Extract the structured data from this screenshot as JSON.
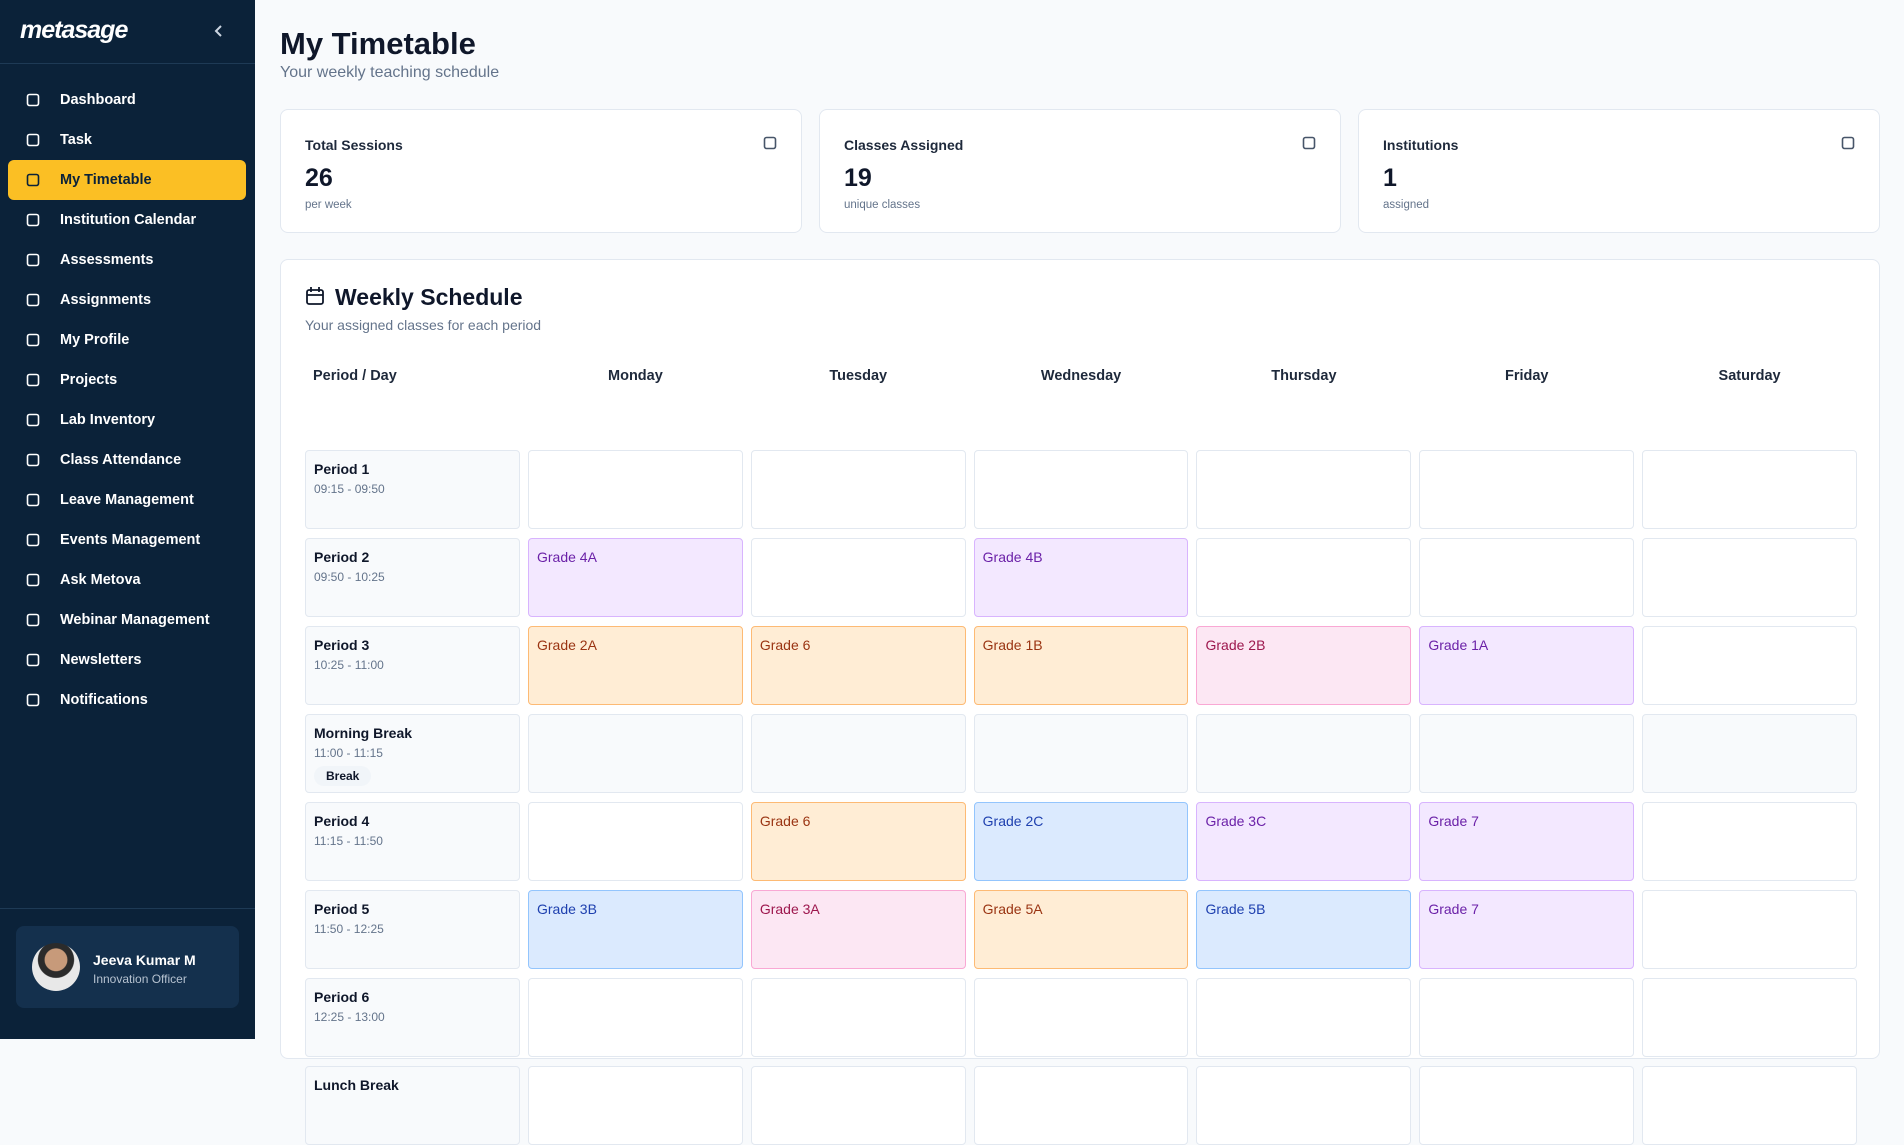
{
  "sidebar": {
    "brand": "metasage",
    "nav": [
      "Dashboard",
      "Task",
      "My Timetable",
      "Institution Calendar",
      "Assessments",
      "Assignments",
      "My Profile",
      "Projects",
      "Lab Inventory",
      "Class Attendance",
      "Leave Management",
      "Events Management",
      "Ask Metova",
      "Webinar Management",
      "Newsletters",
      "Notifications"
    ],
    "active": 2,
    "user": {
      "name": "Jeeva Kumar M",
      "role": "Innovation Officer"
    }
  },
  "header": {
    "title": "My Timetable",
    "subtitle": "Your weekly teaching schedule"
  },
  "stats": [
    {
      "label": "Total Sessions",
      "value": "26",
      "sub": "per week"
    },
    {
      "label": "Classes Assigned",
      "value": "19",
      "sub": "unique classes"
    },
    {
      "label": "Institutions",
      "value": "1",
      "sub": "assigned"
    }
  ],
  "schedule": {
    "title": "Weekly Schedule",
    "subtitle": "Your assigned classes for each period",
    "columns": [
      "Period / Day",
      "Monday",
      "Tuesday",
      "Wednesday",
      "Thursday",
      "Friday",
      "Saturday"
    ],
    "rows": [
      {
        "name": "Period 1",
        "time": "09:15 - 09:50",
        "cells": [
          null,
          null,
          null,
          null,
          null,
          null
        ]
      },
      {
        "name": "Period 2",
        "time": "09:50 - 10:25",
        "cells": [
          {
            "label": "Grade 4A",
            "color": "purple"
          },
          null,
          {
            "label": "Grade 4B",
            "color": "purple"
          },
          null,
          null,
          null
        ]
      },
      {
        "name": "Period 3",
        "time": "10:25 - 11:00",
        "cells": [
          {
            "label": "Grade 2A",
            "color": "orange"
          },
          {
            "label": "Grade 6",
            "color": "orange"
          },
          {
            "label": "Grade 1B",
            "color": "orange"
          },
          {
            "label": "Grade 2B",
            "color": "pink"
          },
          {
            "label": "Grade 1A",
            "color": "purple"
          },
          null
        ]
      },
      {
        "name": "Morning Break",
        "time": "11:00 - 11:15",
        "badge": "Break",
        "cells": [
          null,
          null,
          null,
          null,
          null,
          null
        ]
      },
      {
        "name": "Period 4",
        "time": "11:15 - 11:50",
        "cells": [
          null,
          {
            "label": "Grade 6",
            "color": "orange"
          },
          {
            "label": "Grade 2C",
            "color": "blue"
          },
          {
            "label": "Grade 3C",
            "color": "purple"
          },
          {
            "label": "Grade 7",
            "color": "purple"
          },
          null
        ]
      },
      {
        "name": "Period 5",
        "time": "11:50 - 12:25",
        "cells": [
          {
            "label": "Grade 3B",
            "color": "blue"
          },
          {
            "label": "Grade 3A",
            "color": "pink"
          },
          {
            "label": "Grade 5A",
            "color": "orange"
          },
          {
            "label": "Grade 5B",
            "color": "blue"
          },
          {
            "label": "Grade 7",
            "color": "purple"
          },
          null
        ]
      },
      {
        "name": "Period 6",
        "time": "12:25 - 13:00",
        "cells": [
          null,
          null,
          null,
          null,
          null,
          null
        ]
      },
      {
        "name": "Lunch Break",
        "time": "",
        "cells": [
          null,
          null,
          null,
          null,
          null,
          null
        ]
      }
    ]
  }
}
